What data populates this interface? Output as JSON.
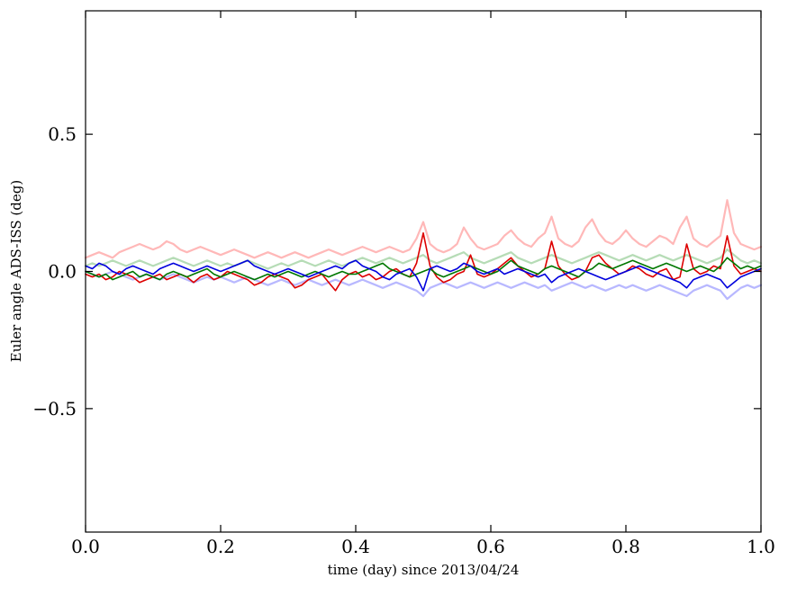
{
  "figure": {
    "background": "#ffffff",
    "frame_color": "#000000",
    "tick_label_color": "#000000"
  },
  "chart_data": {
    "type": "line",
    "title": "",
    "xlabel": "time (day) since 2013/04/24",
    "ylabel": "Euler angle ADS-ISS (deg)",
    "xlim": [
      0,
      1
    ],
    "ylim": [
      -0.95,
      0.95
    ],
    "grid": false,
    "legend": "none",
    "x_ticks": [
      "0.0",
      "0.2",
      "0.4",
      "0.6",
      "0.8",
      "1.0"
    ],
    "x_tick_values": [
      0,
      0.2,
      0.4,
      0.6,
      0.8,
      1.0
    ],
    "y_ticks": [
      "0.5",
      "0.0",
      "−0.5"
    ],
    "y_tick_values": [
      0.5,
      0.0,
      -0.5
    ],
    "x": [
      0,
      0.01,
      0.02,
      0.03,
      0.04,
      0.05,
      0.06,
      0.07,
      0.08,
      0.09,
      0.1,
      0.11,
      0.12,
      0.13,
      0.14,
      0.15,
      0.16,
      0.17,
      0.18,
      0.19,
      0.2,
      0.21,
      0.22,
      0.23,
      0.24,
      0.25,
      0.26,
      0.27,
      0.28,
      0.29,
      0.3,
      0.31,
      0.32,
      0.33,
      0.34,
      0.35,
      0.36,
      0.37,
      0.38,
      0.39,
      0.4,
      0.41,
      0.42,
      0.43,
      0.44,
      0.45,
      0.46,
      0.47,
      0.48,
      0.49,
      0.5,
      0.51,
      0.52,
      0.53,
      0.54,
      0.55,
      0.56,
      0.57,
      0.58,
      0.59,
      0.6,
      0.61,
      0.62,
      0.63,
      0.64,
      0.65,
      0.66,
      0.67,
      0.68,
      0.69,
      0.7,
      0.71,
      0.72,
      0.73,
      0.74,
      0.75,
      0.76,
      0.77,
      0.78,
      0.79,
      0.8,
      0.81,
      0.82,
      0.83,
      0.84,
      0.85,
      0.86,
      0.87,
      0.88,
      0.89,
      0.9,
      0.91,
      0.92,
      0.93,
      0.94,
      0.95,
      0.96,
      0.97,
      0.98,
      0.99,
      1
    ],
    "series": [
      {
        "name": "pale-red",
        "color": "#ffb8b8",
        "width": 2.2,
        "values": [
          0.05,
          0.06,
          0.07,
          0.06,
          0.05,
          0.07,
          0.08,
          0.09,
          0.1,
          0.09,
          0.08,
          0.09,
          0.11,
          0.1,
          0.08,
          0.07,
          0.08,
          0.09,
          0.08,
          0.07,
          0.06,
          0.07,
          0.08,
          0.07,
          0.06,
          0.05,
          0.06,
          0.07,
          0.06,
          0.05,
          0.06,
          0.07,
          0.06,
          0.05,
          0.06,
          0.07,
          0.08,
          0.07,
          0.06,
          0.07,
          0.08,
          0.09,
          0.08,
          0.07,
          0.08,
          0.09,
          0.08,
          0.07,
          0.08,
          0.12,
          0.18,
          0.1,
          0.08,
          0.07,
          0.08,
          0.1,
          0.16,
          0.12,
          0.09,
          0.08,
          0.09,
          0.1,
          0.13,
          0.15,
          0.12,
          0.1,
          0.09,
          0.12,
          0.14,
          0.2,
          0.12,
          0.1,
          0.09,
          0.11,
          0.16,
          0.19,
          0.14,
          0.11,
          0.1,
          0.12,
          0.15,
          0.12,
          0.1,
          0.09,
          0.11,
          0.13,
          0.12,
          0.1,
          0.16,
          0.2,
          0.12,
          0.1,
          0.09,
          0.11,
          0.13,
          0.26,
          0.14,
          0.1,
          0.09,
          0.08,
          0.09
        ]
      },
      {
        "name": "pale-green",
        "color": "#b6dcb6",
        "width": 2.2,
        "values": [
          0.02,
          0.03,
          0.02,
          0.03,
          0.04,
          0.03,
          0.02,
          0.03,
          0.04,
          0.03,
          0.02,
          0.03,
          0.04,
          0.05,
          0.04,
          0.03,
          0.02,
          0.03,
          0.04,
          0.03,
          0.02,
          0.03,
          0.02,
          0.03,
          0.04,
          0.03,
          0.02,
          0.01,
          0.02,
          0.03,
          0.02,
          0.03,
          0.04,
          0.03,
          0.02,
          0.03,
          0.04,
          0.03,
          0.02,
          0.03,
          0.04,
          0.05,
          0.04,
          0.03,
          0.04,
          0.05,
          0.04,
          0.03,
          0.04,
          0.05,
          0.06,
          0.04,
          0.03,
          0.04,
          0.05,
          0.06,
          0.07,
          0.05,
          0.04,
          0.03,
          0.04,
          0.05,
          0.06,
          0.07,
          0.05,
          0.04,
          0.03,
          0.04,
          0.05,
          0.06,
          0.05,
          0.04,
          0.03,
          0.04,
          0.05,
          0.06,
          0.07,
          0.06,
          0.05,
          0.04,
          0.05,
          0.06,
          0.05,
          0.04,
          0.05,
          0.06,
          0.05,
          0.04,
          0.05,
          0.06,
          0.05,
          0.04,
          0.03,
          0.04,
          0.05,
          0.08,
          0.06,
          0.04,
          0.03,
          0.04,
          0.03
        ]
      },
      {
        "name": "pale-blue",
        "color": "#b8b8ff",
        "width": 2.2,
        "values": [
          0,
          -0.01,
          -0.02,
          -0.01,
          0,
          -0.01,
          -0.02,
          -0.03,
          -0.02,
          -0.01,
          -0.02,
          -0.03,
          -0.02,
          -0.01,
          -0.02,
          -0.03,
          -0.04,
          -0.03,
          -0.02,
          -0.03,
          -0.02,
          -0.03,
          -0.04,
          -0.03,
          -0.02,
          -0.03,
          -0.04,
          -0.05,
          -0.04,
          -0.03,
          -0.04,
          -0.05,
          -0.04,
          -0.03,
          -0.04,
          -0.05,
          -0.04,
          -0.03,
          -0.04,
          -0.05,
          -0.04,
          -0.03,
          -0.04,
          -0.05,
          -0.06,
          -0.05,
          -0.04,
          -0.05,
          -0.06,
          -0.07,
          -0.09,
          -0.06,
          -0.05,
          -0.04,
          -0.05,
          -0.06,
          -0.05,
          -0.04,
          -0.05,
          -0.06,
          -0.05,
          -0.04,
          -0.05,
          -0.06,
          -0.05,
          -0.04,
          -0.05,
          -0.06,
          -0.05,
          -0.07,
          -0.06,
          -0.05,
          -0.04,
          -0.05,
          -0.06,
          -0.05,
          -0.06,
          -0.07,
          -0.06,
          -0.05,
          -0.06,
          -0.05,
          -0.06,
          -0.07,
          -0.06,
          -0.05,
          -0.06,
          -0.07,
          -0.08,
          -0.09,
          -0.07,
          -0.06,
          -0.05,
          -0.06,
          -0.07,
          -0.1,
          -0.08,
          -0.06,
          -0.05,
          -0.06,
          -0.05
        ]
      },
      {
        "name": "red",
        "color": "#dd0000",
        "width": 1.6,
        "values": [
          -0.01,
          -0.02,
          -0.01,
          -0.03,
          -0.02,
          0,
          -0.01,
          -0.02,
          -0.04,
          -0.03,
          -0.02,
          -0.01,
          -0.03,
          -0.02,
          -0.01,
          -0.02,
          -0.04,
          -0.02,
          -0.01,
          -0.03,
          -0.02,
          0,
          -0.01,
          -0.02,
          -0.03,
          -0.05,
          -0.04,
          -0.02,
          -0.01,
          -0.02,
          -0.03,
          -0.06,
          -0.05,
          -0.03,
          -0.02,
          -0.01,
          -0.04,
          -0.07,
          -0.03,
          -0.01,
          0,
          -0.02,
          -0.01,
          -0.03,
          -0.02,
          0,
          0.01,
          -0.01,
          -0.02,
          0.03,
          0.14,
          0.02,
          -0.02,
          -0.04,
          -0.03,
          -0.01,
          0,
          0.06,
          -0.01,
          -0.02,
          -0.01,
          0.01,
          0.03,
          0.05,
          0.02,
          0,
          -0.02,
          -0.01,
          0.01,
          0.11,
          0.02,
          -0.01,
          -0.03,
          -0.02,
          0,
          0.05,
          0.06,
          0.03,
          0.01,
          -0.01,
          0,
          0.02,
          0.01,
          -0.01,
          -0.02,
          0,
          0.01,
          -0.03,
          -0.02,
          0.1,
          0.01,
          -0.01,
          0,
          0.02,
          0.01,
          0.13,
          0.02,
          -0.01,
          0,
          0.01,
          0
        ]
      },
      {
        "name": "green",
        "color": "#007700",
        "width": 1.6,
        "values": [
          0,
          -0.01,
          -0.02,
          -0.01,
          -0.03,
          -0.02,
          -0.01,
          0,
          -0.02,
          -0.01,
          -0.02,
          -0.03,
          -0.01,
          0,
          -0.01,
          -0.02,
          -0.01,
          0,
          0.01,
          -0.01,
          -0.02,
          -0.01,
          0,
          -0.01,
          -0.02,
          -0.03,
          -0.02,
          -0.01,
          -0.02,
          -0.01,
          0,
          -0.01,
          -0.02,
          -0.01,
          0,
          -0.01,
          -0.02,
          -0.01,
          0,
          -0.01,
          -0.01,
          0,
          0.01,
          0.02,
          0.03,
          0.01,
          0,
          -0.01,
          -0.02,
          -0.01,
          0,
          0.01,
          -0.01,
          -0.02,
          -0.01,
          0,
          0.01,
          0.02,
          0.01,
          0,
          -0.01,
          0,
          0.02,
          0.04,
          0.02,
          0.01,
          0,
          -0.01,
          0.01,
          0.02,
          0.01,
          0,
          -0.01,
          -0.02,
          0,
          0.01,
          0.03,
          0.02,
          0.01,
          0.02,
          0.03,
          0.04,
          0.03,
          0.02,
          0.01,
          0.02,
          0.03,
          0.02,
          0.01,
          0,
          0.01,
          0.02,
          0.01,
          0,
          0.02,
          0.05,
          0.03,
          0.01,
          0.02,
          0.01,
          0.02
        ]
      },
      {
        "name": "blue",
        "color": "#0000dd",
        "width": 1.6,
        "values": [
          0.02,
          0.01,
          0.03,
          0.02,
          0,
          -0.01,
          0.01,
          0.02,
          0.01,
          0,
          -0.01,
          0.01,
          0.02,
          0.03,
          0.02,
          0.01,
          0,
          0.01,
          0.02,
          0.01,
          0,
          0.01,
          0.02,
          0.03,
          0.04,
          0.02,
          0.01,
          0,
          -0.01,
          0,
          0.01,
          0,
          -0.01,
          -0.02,
          -0.01,
          0,
          0.01,
          0.02,
          0.01,
          0.03,
          0.04,
          0.02,
          0.01,
          0,
          -0.02,
          -0.03,
          -0.01,
          0,
          0.01,
          -0.02,
          -0.07,
          0.01,
          0.02,
          0.01,
          0,
          0.01,
          0.03,
          0.02,
          0,
          -0.01,
          0,
          0.01,
          -0.01,
          0,
          0.01,
          0,
          -0.01,
          -0.02,
          -0.01,
          -0.04,
          -0.02,
          -0.01,
          0,
          0.01,
          0,
          -0.01,
          -0.02,
          -0.03,
          -0.02,
          -0.01,
          0,
          0.01,
          0.02,
          0.01,
          0,
          -0.01,
          -0.02,
          -0.03,
          -0.04,
          -0.06,
          -0.03,
          -0.02,
          -0.01,
          -0.02,
          -0.03,
          -0.06,
          -0.04,
          -0.02,
          -0.01,
          0,
          0.01
        ]
      }
    ]
  }
}
